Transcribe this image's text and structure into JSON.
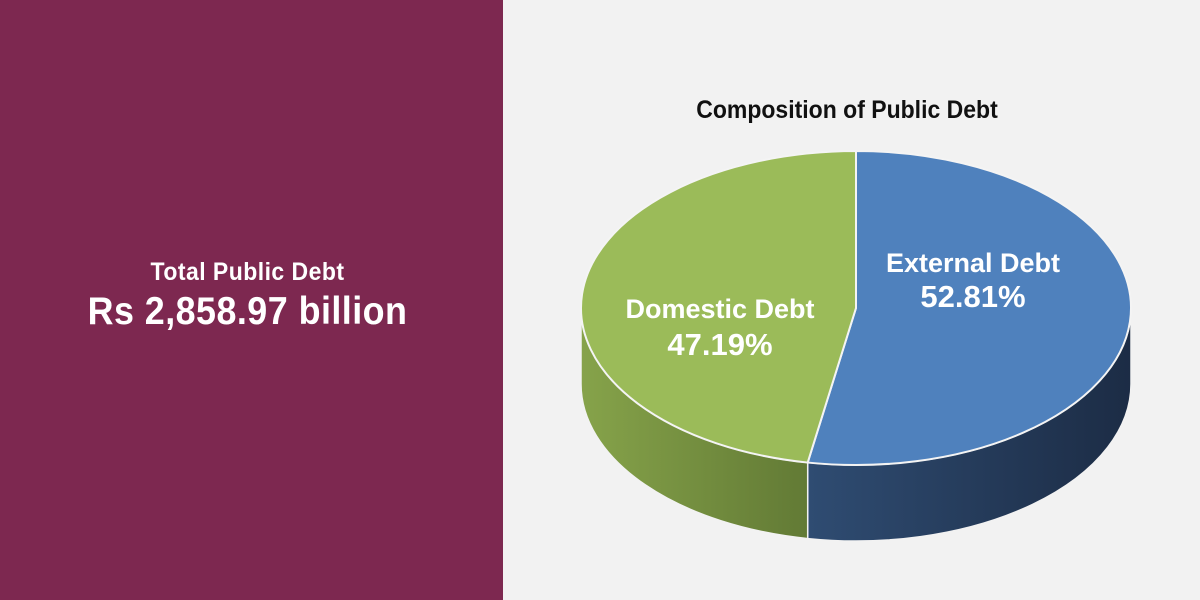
{
  "summary": {
    "label": "Total Public Debt",
    "value": "Rs 2,858.97 billion"
  },
  "colors": {
    "left_panel": "#7d2850",
    "background": "#f2f2f2"
  },
  "chart_data": {
    "type": "pie",
    "style": "3d",
    "title": "Composition of Public Debt",
    "slices": [
      {
        "name": "External Debt",
        "label": "52.81%",
        "value": 52.81,
        "color": "#4f81bd",
        "side_color": "#1f3350"
      },
      {
        "name": "Domestic Debt",
        "label": "47.19%",
        "value": 47.19,
        "color": "#9bbb59",
        "side_color": "#6e8a3c"
      }
    ]
  }
}
